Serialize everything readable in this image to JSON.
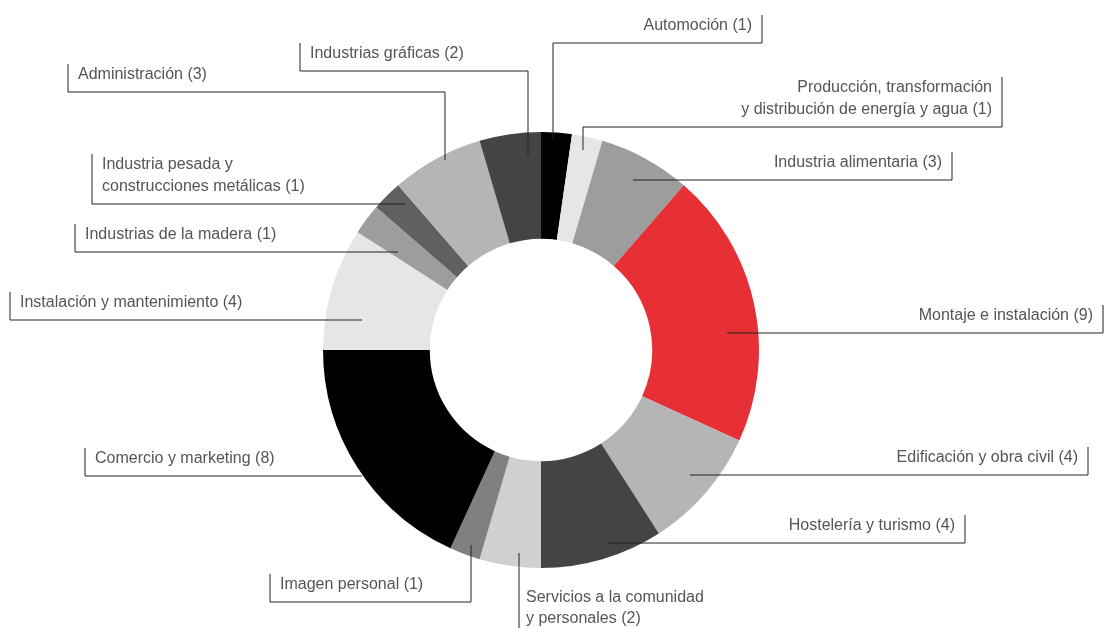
{
  "chart_data": {
    "type": "donut",
    "categories": [
      "Automoción",
      "Producción, transformación\ny distribución de energía y agua",
      "Industria alimentaria",
      "Montaje e instalación",
      "Edificación y obra civil",
      "Hostelería y turismo",
      "Servicios a la comunidad\ny personales",
      "Imagen personal",
      "Comercio y marketing",
      "Instalación y mantenimiento",
      "Industrias de la madera",
      "Industria pesada y\nconstrucciones metálicas",
      "Administración",
      "Industrias gráficas"
    ],
    "values": [
      1,
      1,
      3,
      9,
      4,
      4,
      2,
      1,
      8,
      4,
      1,
      1,
      3,
      2
    ],
    "colors": [
      "#000000",
      "#e6e6e6",
      "#9d9d9e",
      "#e63036",
      "#b4b5b6",
      "#444445",
      "#d0d0d0",
      "#808080",
      "#000000",
      "#e6e6e6",
      "#9d9d9e",
      "#606060",
      "#b4b5b6",
      "#444445"
    ],
    "value_labels": [
      "(1)",
      "(1)",
      "(3)",
      "(9)",
      "(4)",
      "(4)",
      "(2)",
      "(1)",
      "(8)",
      "(4)",
      "(1)",
      "(1)",
      "(3)",
      "(2)"
    ],
    "legend": false
  }
}
